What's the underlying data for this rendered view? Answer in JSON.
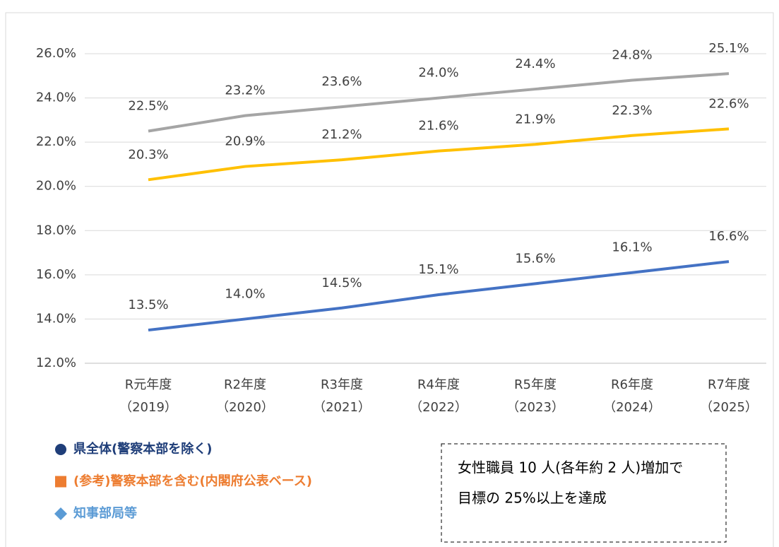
{
  "chart_data": {
    "type": "line",
    "categories": [
      [
        "R元年度",
        "（2019）"
      ],
      [
        "R2年度",
        "（2020）"
      ],
      [
        "R3年度",
        "（2021）"
      ],
      [
        "R4年度",
        "（2022）"
      ],
      [
        "R5年度",
        "（2023）"
      ],
      [
        "R6年度",
        "（2024）"
      ],
      [
        "R7年度",
        "（2025）"
      ]
    ],
    "series": [
      {
        "name": "県全体(警察本部を除く)",
        "color": "#a5a5a5",
        "legend_color": "#1f3e79",
        "legend_marker": "circle",
        "values": [
          22.5,
          23.2,
          23.6,
          24.0,
          24.4,
          24.8,
          25.1
        ],
        "value_labels": [
          "22.5%",
          "23.2%",
          "23.6%",
          "24.0%",
          "24.4%",
          "24.8%",
          "25.1%"
        ]
      },
      {
        "name": "(参考)警察本部を含む(内閣府公表ベース)",
        "color": "#ffc000",
        "legend_color": "#ed7d31",
        "legend_marker": "square",
        "values": [
          20.3,
          20.9,
          21.2,
          21.6,
          21.9,
          22.3,
          22.6
        ],
        "value_labels": [
          "20.3%",
          "20.9%",
          "21.2%",
          "21.6%",
          "21.9%",
          "22.3%",
          "22.6%"
        ]
      },
      {
        "name": "知事部局等",
        "color": "#4472c4",
        "legend_color": "#5b9bd5",
        "legend_marker": "diamond",
        "values": [
          13.5,
          14.0,
          14.5,
          15.1,
          15.6,
          16.1,
          16.6
        ],
        "value_labels": [
          "13.5%",
          "14.0%",
          "14.5%",
          "15.1%",
          "15.6%",
          "16.1%",
          "16.6%"
        ]
      }
    ],
    "ylim": [
      12,
      26
    ],
    "yticks": [
      {
        "value": 12,
        "label": "12.0%"
      },
      {
        "value": 14,
        "label": "14.0%"
      },
      {
        "value": 16,
        "label": "16.0%"
      },
      {
        "value": 18,
        "label": "18.0%"
      },
      {
        "value": 20,
        "label": "20.0%"
      },
      {
        "value": 22,
        "label": "22.0%"
      },
      {
        "value": 24,
        "label": "24.0%"
      },
      {
        "value": 26,
        "label": "26.0%"
      }
    ],
    "grid": true,
    "annotation": [
      "女性職員 10 人(各年約 2 人)増加で",
      "目標の 25%以上を達成"
    ]
  }
}
